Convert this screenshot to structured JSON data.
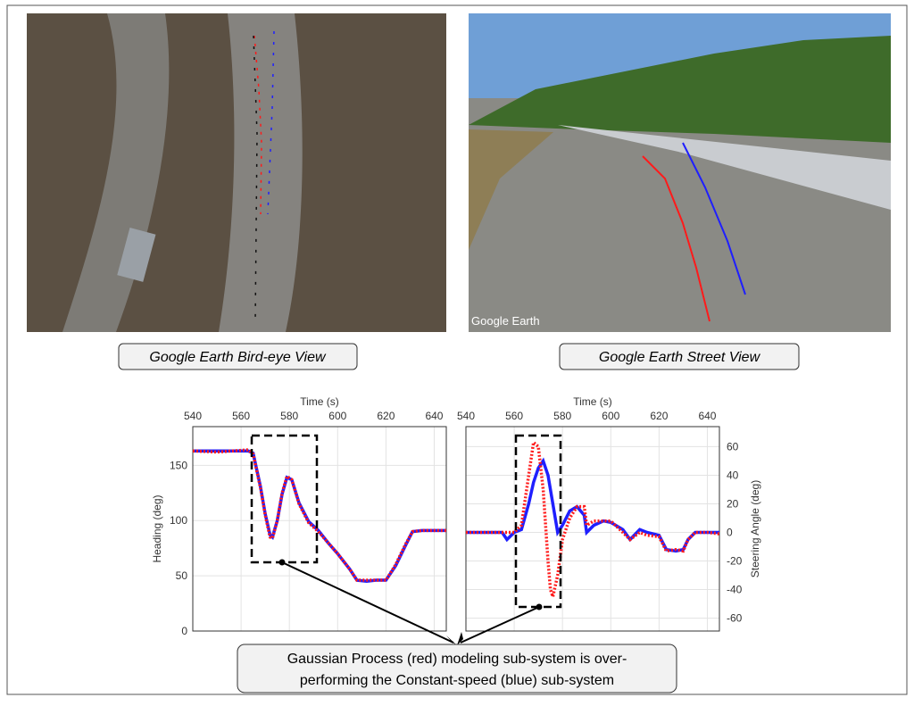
{
  "captions": [
    "Google Earth Bird-eye View",
    "Google Earth Street View"
  ],
  "watermark": "Google Earth",
  "annotation": [
    "Gaussian Process (red) modeling sub-system is over-",
    "performing the Constant-speed (blue) sub-system"
  ],
  "chart_data": [
    {
      "type": "line",
      "x_label": "Time (s)",
      "y_label": "Heading (deg)",
      "y_axis_side": "left",
      "grid": true,
      "xlim": [
        540,
        645
      ],
      "xticks": [
        540,
        560,
        580,
        600,
        620,
        640
      ],
      "ylim": [
        0,
        185
      ],
      "yticks": [
        0,
        50,
        100,
        150
      ],
      "x": [
        540,
        550,
        563,
        565,
        568,
        570,
        572,
        573,
        575,
        577,
        579,
        581,
        584,
        588,
        592,
        596,
        600,
        605,
        608,
        612,
        616,
        620,
        624,
        628,
        631,
        635,
        645
      ],
      "series": [
        {
          "name": "Constant-speed",
          "color": "#1f1fff",
          "values": [
            163,
            163,
            163,
            161,
            131,
            106,
            87,
            85,
            100,
            124,
            139,
            137,
            116,
            99,
            91,
            80,
            70,
            56,
            46,
            45,
            46,
            46,
            59,
            77,
            90,
            91,
            91
          ]
        },
        {
          "name": "Gaussian Process",
          "color": "#ff1a1a",
          "values": [
            163,
            162,
            164,
            160,
            130,
            105,
            85,
            84,
            100,
            125,
            140,
            137,
            115,
            98,
            90,
            80,
            70,
            56,
            46,
            46,
            46,
            46,
            60,
            78,
            90,
            91,
            91
          ]
        }
      ]
    },
    {
      "type": "line",
      "x_label": "Time (s)",
      "y_label": "Steering  Angle (deg)",
      "y_axis_side": "right",
      "grid": true,
      "xlim": [
        540,
        645
      ],
      "xticks": [
        540,
        560,
        580,
        600,
        620,
        640
      ],
      "ylim": [
        -69,
        74
      ],
      "yticks": [
        -60,
        -40,
        -20,
        0,
        20,
        40,
        60
      ],
      "x": [
        540,
        555,
        557,
        560,
        563,
        566,
        568,
        570,
        572,
        574,
        575,
        576,
        578,
        580,
        583,
        586,
        589,
        590,
        593,
        597,
        600,
        605,
        608,
        612,
        615,
        620,
        623,
        627,
        630,
        632,
        635,
        640,
        645
      ],
      "series": [
        {
          "name": "Constant-speed",
          "color": "#1f1fff",
          "values": [
            0,
            0,
            -5,
            0,
            2,
            20,
            35,
            45,
            50,
            40,
            30,
            20,
            0,
            5,
            15,
            18,
            12,
            0,
            5,
            8,
            7,
            2,
            -5,
            2,
            0,
            -2,
            -12,
            -13,
            -12,
            -5,
            0,
            0,
            0
          ]
        },
        {
          "name": "Gaussian Process",
          "color": "#ff1a1a",
          "values": [
            0,
            0,
            0,
            0,
            5,
            40,
            63,
            60,
            30,
            -20,
            -40,
            -45,
            -30,
            -5,
            10,
            18,
            18,
            5,
            8,
            8,
            8,
            0,
            -5,
            0,
            -2,
            -3,
            -13,
            -12,
            -13,
            -5,
            0,
            0,
            -1
          ]
        }
      ]
    }
  ]
}
